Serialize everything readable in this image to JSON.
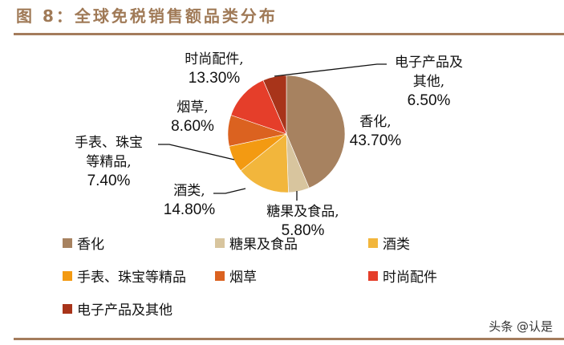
{
  "header": {
    "title": "图 8：全球免税销售额品类分布"
  },
  "chart_data": {
    "type": "pie",
    "title": "全球免税销售额品类分布",
    "start_angle_deg": -90,
    "direction": "clockwise",
    "legend_position": "bottom",
    "categories": [
      "香化",
      "糖果及食品",
      "酒类",
      "手表、珠宝等精品",
      "烟草",
      "时尚配件",
      "电子产品及其他"
    ],
    "values": [
      43.7,
      5.8,
      14.8,
      7.4,
      8.6,
      13.3,
      6.5
    ],
    "colors": [
      "#a78260",
      "#d8c59e",
      "#f2b63c",
      "#f39a12",
      "#db6220",
      "#e53e2a",
      "#a8341a"
    ],
    "data_labels": [
      "43.70%",
      "5.80%",
      "14.80%",
      "7.40%",
      "8.60%",
      "13.30%",
      "6.50%"
    ]
  },
  "labels": {
    "xianghua": {
      "name": "香化,",
      "pct": "43.70%"
    },
    "tangguo": {
      "name": "糖果及食品,",
      "pct": "5.80%"
    },
    "jiulei": {
      "name": "酒类,",
      "pct": "14.80%"
    },
    "shoubiao": {
      "line1": "手表、珠宝",
      "line2": "等精品,",
      "pct": "7.40%"
    },
    "yancao": {
      "name": "烟草,",
      "pct": "8.60%"
    },
    "shishang": {
      "name": "时尚配件,",
      "pct": "13.30%"
    },
    "dianzi": {
      "line1": "电子产品及",
      "line2": "其他,",
      "pct": "6.50%"
    }
  },
  "legend": [
    {
      "label": "香化",
      "color": "#a78260"
    },
    {
      "label": "糖果及食品",
      "color": "#d8c59e"
    },
    {
      "label": "酒类",
      "color": "#f2b63c"
    },
    {
      "label": "手表、珠宝等精品",
      "color": "#f39a12"
    },
    {
      "label": "烟草",
      "color": "#db6220"
    },
    {
      "label": "时尚配件",
      "color": "#e53e2a"
    },
    {
      "label": "电子产品及其他",
      "color": "#a8341a"
    }
  ],
  "footer": {
    "watermark": "头条 @认是"
  }
}
